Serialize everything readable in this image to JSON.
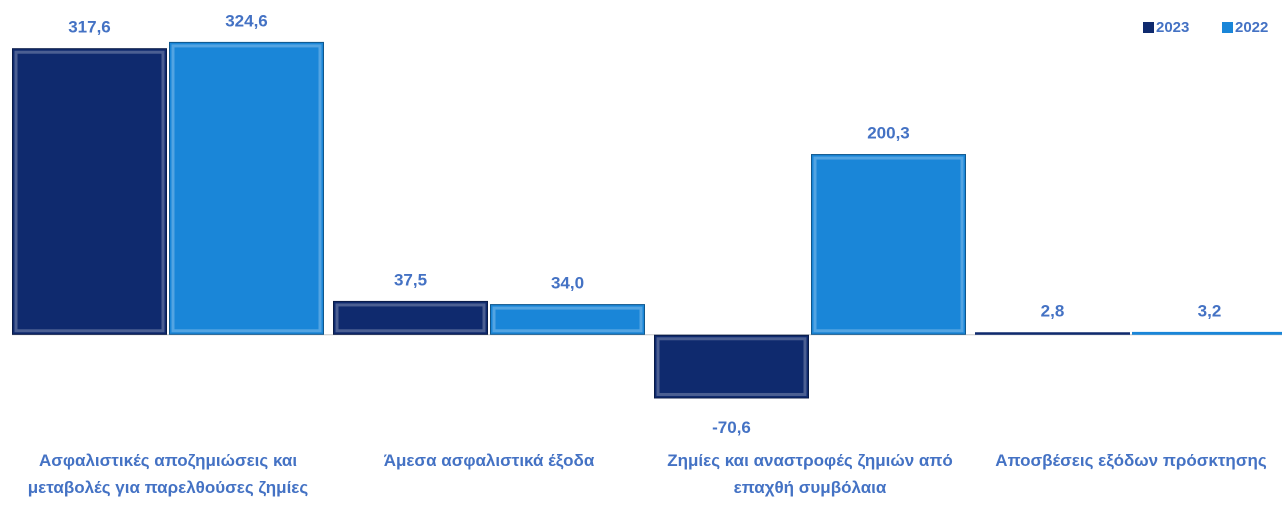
{
  "chart_data": {
    "type": "bar",
    "categories": [
      "Ασφαλιστικές αποζημιώσεις και μεταβολές για παρελθούσες ζημίες",
      "Άμεσα ασφαλιστικά έξοδα",
      "Ζημίες και αναστροφές ζημιών από επαχθή συμβόλαια",
      "Αποσβέσεις εξόδων πρόσκτησης"
    ],
    "series": [
      {
        "name": "2023",
        "color": "#0f2a6e",
        "values": [
          317.6,
          37.5,
          -70.6,
          2.8
        ],
        "value_labels": [
          "317,6",
          "37,5",
          "-70,6",
          "2,8"
        ]
      },
      {
        "name": "2022",
        "color": "#1a86d8",
        "values": [
          324.6,
          34.0,
          200.3,
          3.2
        ],
        "value_labels": [
          "324,6",
          "34,0",
          "200,3",
          "3,2"
        ]
      }
    ],
    "ylim": [
      -100,
      350
    ],
    "legend": "top-right"
  }
}
